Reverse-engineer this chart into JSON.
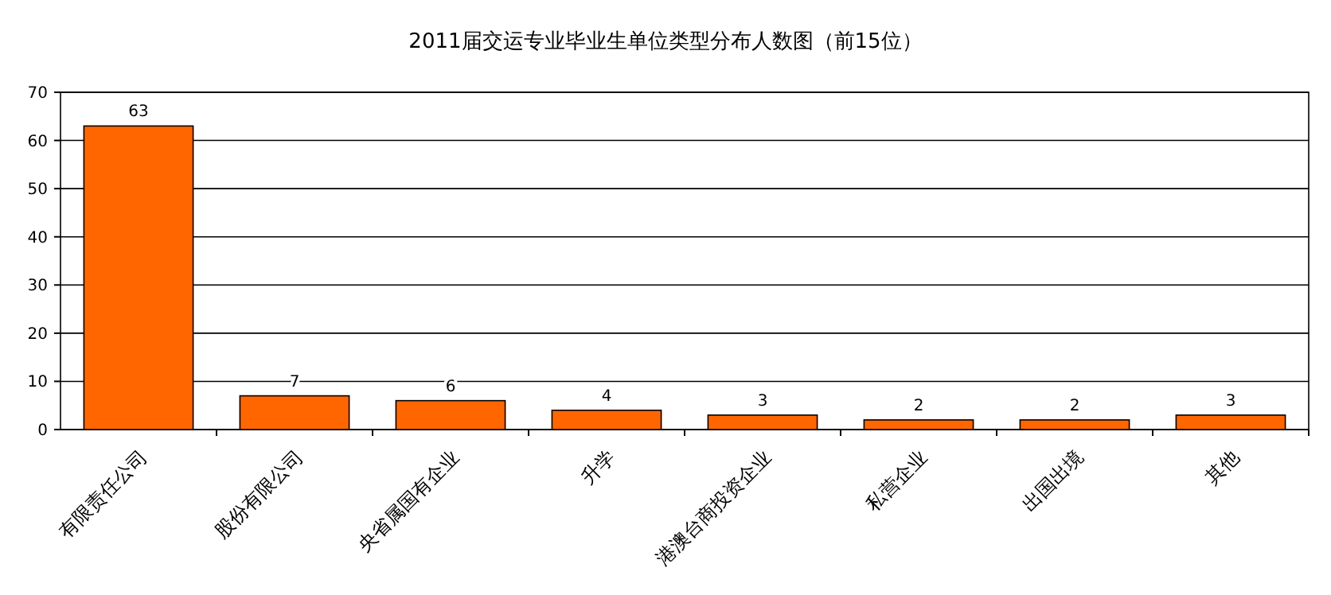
{
  "chart_data": {
    "type": "bar",
    "title": "2011届交运专业毕业生单位类型分布人数图（前15位）",
    "categories": [
      "有限责任公司",
      "股份有限公司",
      "央省属国有企业",
      "升学",
      "港澳台商投资企业",
      "私营企业",
      "出国出境",
      "其他"
    ],
    "values": [
      63,
      7,
      6,
      4,
      3,
      2,
      2,
      3
    ],
    "color": "#ff6600",
    "ylim": [
      0,
      70
    ],
    "yticks": [
      0,
      10,
      20,
      30,
      40,
      50,
      60,
      70
    ],
    "grid": "y",
    "data_labels": true
  }
}
